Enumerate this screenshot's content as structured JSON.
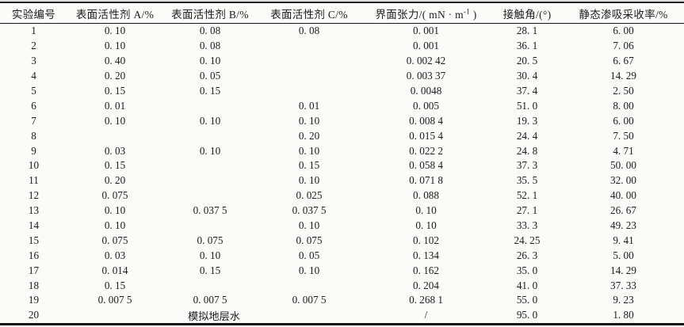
{
  "table": {
    "columns": [
      {
        "label": "实验编号"
      },
      {
        "label": "表面活性剂 A/%"
      },
      {
        "label": "表面活性剂 B/%"
      },
      {
        "label": "表面活性剂 C/%"
      },
      {
        "prefix": "界面张力/( mN · m",
        "sup": "-1",
        "suffix": " )"
      },
      {
        "label": "接触角/(°)"
      },
      {
        "label": "静态渗吸采收率/%"
      }
    ],
    "rows": [
      [
        "1",
        "0. 10",
        "0. 08",
        "0. 08",
        "0. 001",
        "28. 1",
        "6. 00"
      ],
      [
        "2",
        "0. 10",
        "0. 08",
        "",
        "0. 001",
        "36. 1",
        "7. 06"
      ],
      [
        "3",
        "0. 40",
        "0. 10",
        "",
        "0. 002 42",
        "20. 5",
        "6. 67"
      ],
      [
        "4",
        "0. 20",
        "0. 05",
        "",
        "0. 003 37",
        "30. 4",
        "14. 29"
      ],
      [
        "5",
        "0. 15",
        "0. 15",
        "",
        "0. 0048",
        "37. 4",
        "2. 50"
      ],
      [
        "6",
        "0. 01",
        "",
        "0. 01",
        "0. 005",
        "51. 0",
        "8. 00"
      ],
      [
        "7",
        "0. 10",
        "0. 10",
        "0. 10",
        "0. 008 4",
        "19. 3",
        "6. 00"
      ],
      [
        "8",
        "",
        "",
        "0. 20",
        "0. 015 4",
        "24. 4",
        "7. 50"
      ],
      [
        "9",
        "0. 03",
        "0. 10",
        "0. 10",
        "0. 022 2",
        "24. 8",
        "4. 71"
      ],
      [
        "10",
        "0. 15",
        "",
        "0. 15",
        "0. 058 4",
        "37. 3",
        "50. 00"
      ],
      [
        "11",
        "0. 20",
        "",
        "0. 10",
        "0. 071 8",
        "35. 5",
        "32. 00"
      ],
      [
        "12",
        "0. 075",
        "",
        "0. 025",
        "0. 088",
        "52. 1",
        "40. 00"
      ],
      [
        "13",
        "0. 10",
        "0. 037 5",
        "0. 037 5",
        "0. 10",
        "27. 1",
        "26. 67"
      ],
      [
        "14",
        "0. 10",
        "",
        "0. 10",
        "0. 10",
        "33. 3",
        "49. 23"
      ],
      [
        "15",
        "0. 075",
        "0. 075",
        "0. 075",
        "0. 102",
        "24. 25",
        "9. 41"
      ],
      [
        "16",
        "0. 03",
        "0. 10",
        "0. 05",
        "0. 134",
        "26. 3",
        "5. 00"
      ],
      [
        "17",
        "0. 014",
        "0. 15",
        "0. 10",
        "0. 162",
        "35. 0",
        "14. 29"
      ],
      [
        "18",
        "0. 15",
        "",
        "",
        "0. 204",
        "41. 0",
        "37. 33"
      ],
      [
        "19",
        "0. 007 5",
        "0. 007 5",
        "0. 007 5",
        "0. 268 1",
        "55. 0",
        "9. 23"
      ],
      [
        "20",
        {
          "text": "模拟地层水",
          "colspan": 3
        },
        "/",
        "95. 0",
        "1. 80"
      ]
    ]
  }
}
